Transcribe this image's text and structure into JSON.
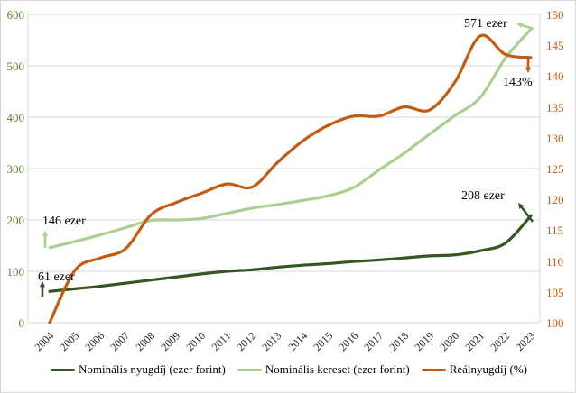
{
  "figure": {
    "background": "#ffffff",
    "border_color": "#d6d6d6"
  },
  "chart_data": {
    "type": "line",
    "title": "",
    "x_labels": [
      "2004",
      "2005",
      "2006",
      "2007",
      "2008",
      "2009",
      "2010",
      "2011",
      "2012",
      "2013",
      "2014",
      "2015",
      "2016",
      "2017",
      "2018",
      "2019",
      "2020",
      "2021",
      "2022",
      "2023"
    ],
    "series": [
      {
        "name": "Nominális nyugdíj (ezer forint)",
        "axis": "left",
        "color": "#375623",
        "values": [
          61,
          66,
          71,
          77,
          83,
          89,
          95,
          100,
          103,
          108,
          112,
          115,
          119,
          122,
          126,
          130,
          132,
          140,
          155,
          208
        ]
      },
      {
        "name": "Nominális kereset (ezer forint)",
        "axis": "left",
        "color": "#a9d08e",
        "values": [
          146,
          158,
          171,
          185,
          199,
          200,
          203,
          213,
          223,
          230,
          238,
          247,
          263,
          297,
          330,
          367,
          403,
          438,
          515,
          571
        ]
      },
      {
        "name": "Reálnyugdíj (%)",
        "axis": "right",
        "color": "#c55a11",
        "values": [
          100,
          108.5,
          110.5,
          112,
          117.5,
          119.5,
          121,
          122.5,
          122,
          126,
          129.5,
          132,
          133.5,
          133.5,
          135,
          134.5,
          139,
          146.5,
          143.5,
          143
        ]
      }
    ],
    "left_axis": {
      "range": [
        0,
        600
      ],
      "tick_labels": [
        "0",
        "100",
        "200",
        "300",
        "400",
        "500",
        "600"
      ],
      "label_color": "#538135"
    },
    "right_axis": {
      "range": [
        100,
        150
      ],
      "tick_labels": [
        "100",
        "105",
        "110",
        "115",
        "120",
        "125",
        "130",
        "135",
        "140",
        "145",
        "150"
      ],
      "label_color": "#c55a11"
    },
    "gridlines": "horizontal",
    "grid_color": "#d9d9d9",
    "legend_position": "bottom",
    "annotations": [
      {
        "id": "nyugdij-start",
        "text": "61 ezer",
        "arrow_dir": "up",
        "series": 0
      },
      {
        "id": "kereset-start",
        "text": "146 ezer",
        "arrow_dir": "up",
        "series": 1
      },
      {
        "id": "kereset-end",
        "text": "571 ezer",
        "arrow_dir": "left",
        "series": 1
      },
      {
        "id": "realnyugdij-end",
        "text": "143%",
        "arrow_dir": "down",
        "series": 2
      },
      {
        "id": "nyugdij-end",
        "text": "208 ezer",
        "arrow_dir": "up-left",
        "series": 0
      }
    ]
  }
}
